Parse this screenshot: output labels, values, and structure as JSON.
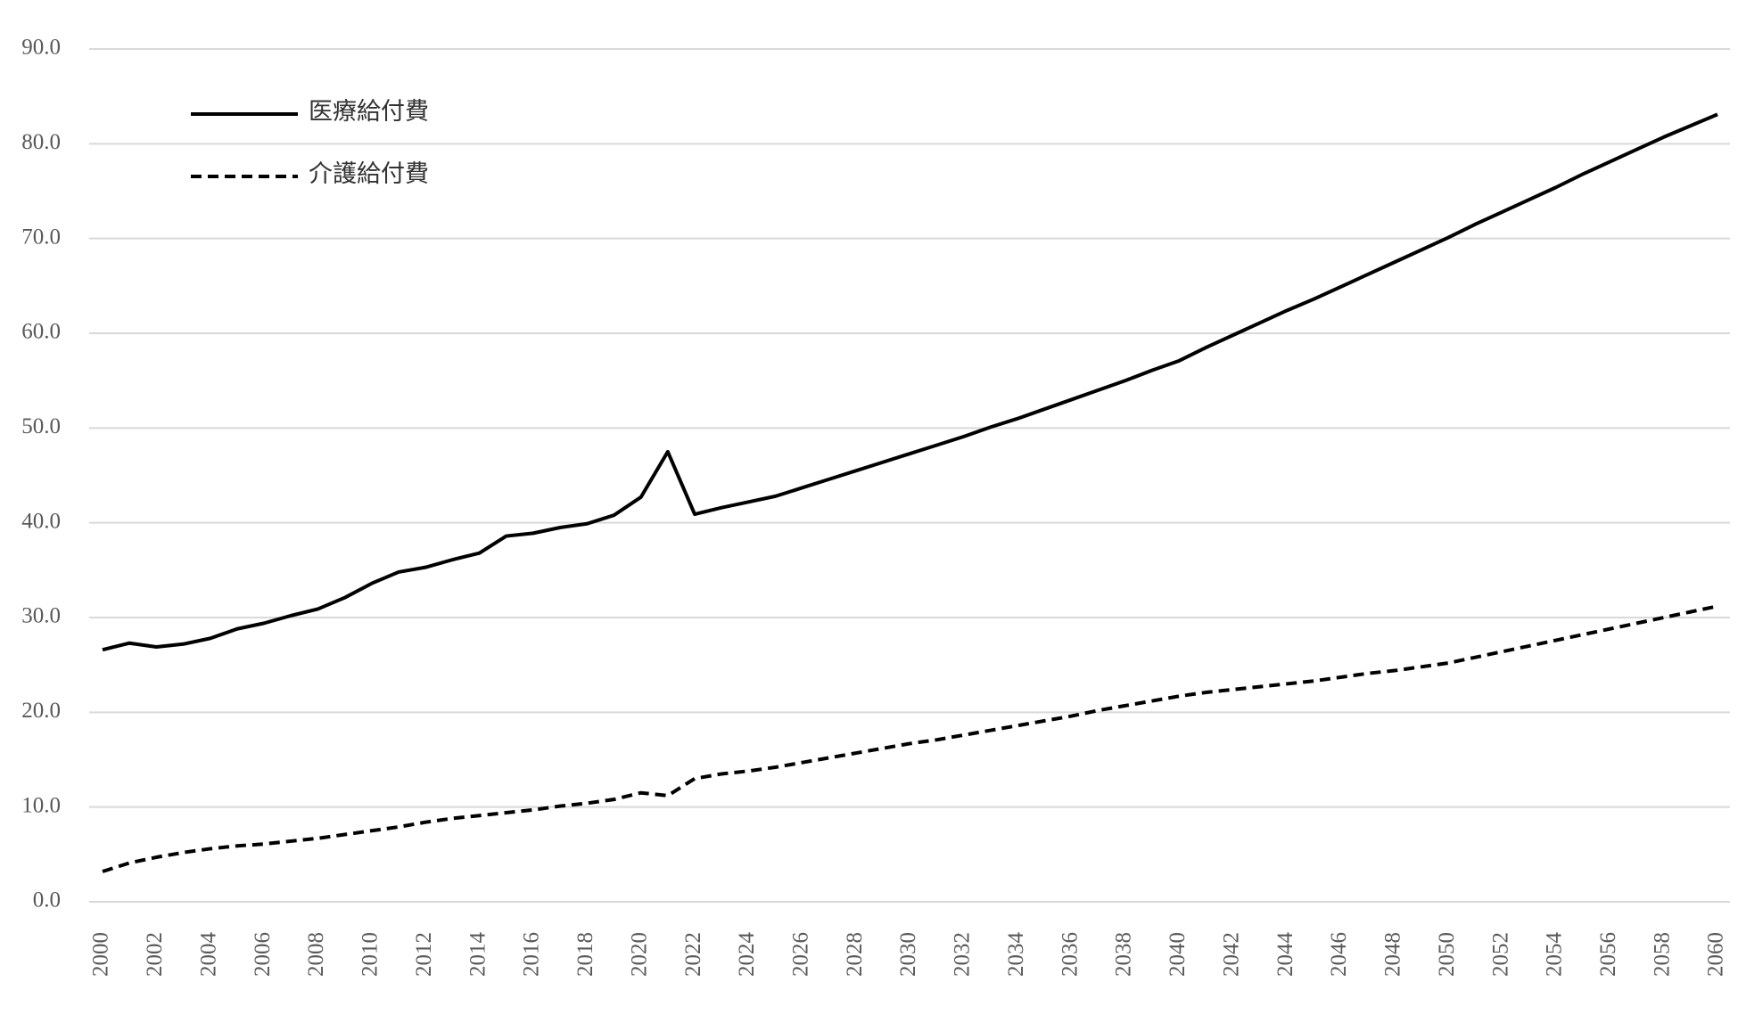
{
  "chart_data": {
    "type": "line",
    "x": [
      2000,
      2001,
      2002,
      2003,
      2004,
      2005,
      2006,
      2007,
      2008,
      2009,
      2010,
      2011,
      2012,
      2013,
      2014,
      2015,
      2016,
      2017,
      2018,
      2019,
      2020,
      2021,
      2022,
      2023,
      2024,
      2025,
      2026,
      2027,
      2028,
      2029,
      2030,
      2031,
      2032,
      2033,
      2034,
      2035,
      2036,
      2037,
      2038,
      2039,
      2040,
      2041,
      2042,
      2043,
      2044,
      2045,
      2046,
      2047,
      2048,
      2049,
      2050,
      2051,
      2052,
      2053,
      2054,
      2055,
      2056,
      2057,
      2058,
      2059,
      2060
    ],
    "series": [
      {
        "name": "医療給付費",
        "color": "#000000",
        "dash": false,
        "values": [
          26.6,
          27.3,
          26.9,
          27.2,
          27.8,
          28.8,
          29.4,
          30.2,
          30.9,
          32.1,
          33.6,
          34.8,
          35.3,
          36.1,
          36.8,
          38.6,
          38.9,
          39.5,
          39.9,
          40.8,
          42.7,
          47.5,
          40.9,
          41.6,
          42.2,
          42.8,
          43.7,
          44.6,
          45.5,
          46.4,
          47.3,
          48.2,
          49.1,
          50.1,
          51.0,
          52.0,
          53.0,
          54.0,
          55.0,
          56.1,
          57.1,
          58.5,
          59.8,
          61.1,
          62.4,
          63.6,
          64.9,
          66.2,
          67.5,
          68.8,
          70.1,
          71.5,
          72.8,
          74.1,
          75.4,
          76.8,
          78.1,
          79.4,
          80.7,
          81.9,
          83.1
        ]
      },
      {
        "name": "介護給付費",
        "color": "#000000",
        "dash": true,
        "values": [
          3.2,
          4.1,
          4.7,
          5.2,
          5.6,
          5.9,
          6.1,
          6.4,
          6.7,
          7.1,
          7.5,
          7.9,
          8.4,
          8.8,
          9.1,
          9.4,
          9.7,
          10.1,
          10.4,
          10.8,
          11.5,
          11.2,
          13.0,
          13.5,
          13.8,
          14.2,
          14.7,
          15.2,
          15.7,
          16.2,
          16.7,
          17.1,
          17.6,
          18.1,
          18.6,
          19.1,
          19.6,
          20.2,
          20.7,
          21.2,
          21.7,
          22.1,
          22.4,
          22.7,
          23.0,
          23.3,
          23.7,
          24.1,
          24.4,
          24.8,
          25.2,
          25.8,
          26.4,
          27.0,
          27.6,
          28.2,
          28.8,
          29.4,
          30.0,
          30.6,
          31.2
        ]
      }
    ],
    "xlim": [
      2000,
      2060
    ],
    "xticks": [
      2000,
      2002,
      2004,
      2006,
      2008,
      2010,
      2012,
      2014,
      2016,
      2018,
      2020,
      2022,
      2024,
      2026,
      2028,
      2030,
      2032,
      2034,
      2036,
      2038,
      2040,
      2042,
      2044,
      2046,
      2048,
      2050,
      2052,
      2054,
      2056,
      2058,
      2060
    ],
    "ylim": [
      0,
      90
    ],
    "yticks": [
      {
        "value": 0,
        "label": "0.0"
      },
      {
        "value": 10,
        "label": "10.0"
      },
      {
        "value": 20,
        "label": "20.0"
      },
      {
        "value": 30,
        "label": "30.0"
      },
      {
        "value": 40,
        "label": "40.0"
      },
      {
        "value": 50,
        "label": "50.0"
      },
      {
        "value": 60,
        "label": "60.0"
      },
      {
        "value": 70,
        "label": "70.0"
      },
      {
        "value": 80,
        "label": "80.0"
      },
      {
        "value": 90,
        "label": "90.0"
      }
    ],
    "grid": true,
    "legend": "upper-left"
  }
}
